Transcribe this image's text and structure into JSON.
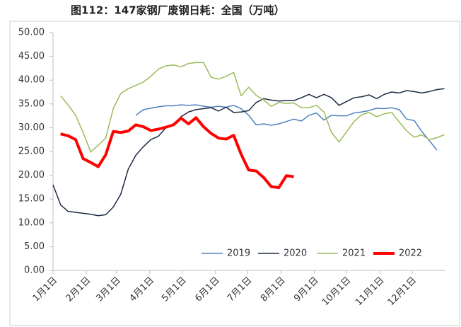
{
  "chart_data": {
    "type": "line",
    "title": "图112：147家钢厂废钢日耗：全国（万吨）",
    "x": [
      0,
      7,
      14,
      21,
      28,
      35,
      42,
      49,
      56,
      63,
      70,
      77,
      84,
      91,
      98,
      105,
      112,
      119,
      126,
      133,
      140,
      147,
      154,
      161,
      168,
      175,
      182,
      189,
      196,
      203,
      210,
      217,
      224,
      231,
      238,
      245,
      252,
      259,
      266,
      273,
      280,
      287,
      294,
      301,
      308,
      315,
      322,
      329,
      336,
      343,
      350,
      357,
      364
    ],
    "xlim": [
      0,
      365
    ],
    "xticks": [
      {
        "value": 0,
        "label": "1月1日"
      },
      {
        "value": 31,
        "label": "2月1日"
      },
      {
        "value": 59,
        "label": "3月1日"
      },
      {
        "value": 90,
        "label": "4月1日"
      },
      {
        "value": 120,
        "label": "5月1日"
      },
      {
        "value": 151,
        "label": "6月1日"
      },
      {
        "value": 181,
        "label": "7月1日"
      },
      {
        "value": 212,
        "label": "8月1日"
      },
      {
        "value": 243,
        "label": "9月1日"
      },
      {
        "value": 273,
        "label": "10月1日"
      },
      {
        "value": 304,
        "label": "11月1日"
      },
      {
        "value": 334,
        "label": "12月1日"
      }
    ],
    "ylim": [
      0,
      50
    ],
    "yticks": [
      {
        "value": 0,
        "label": "0.00"
      },
      {
        "value": 5,
        "label": "5.00"
      },
      {
        "value": 10,
        "label": "10.00"
      },
      {
        "value": 15,
        "label": "15.00"
      },
      {
        "value": 20,
        "label": "20.00"
      },
      {
        "value": 25,
        "label": "25.00"
      },
      {
        "value": 30,
        "label": "30.00"
      },
      {
        "value": 35,
        "label": "35.00"
      },
      {
        "value": 40,
        "label": "40.00"
      },
      {
        "value": 45,
        "label": "45.00"
      },
      {
        "value": 50,
        "label": "50.00"
      }
    ],
    "legend": "bottom",
    "series": [
      {
        "name": "2019",
        "color": "#4f81bd",
        "width": 1.5,
        "values": [
          null,
          null,
          null,
          null,
          null,
          null,
          null,
          null,
          null,
          null,
          null,
          32.6,
          33.8,
          34.1,
          34.4,
          34.6,
          34.6,
          34.8,
          34.7,
          34.8,
          34.5,
          34.3,
          34.5,
          34.3,
          34.7,
          34,
          32.6,
          30.6,
          30.8,
          30.5,
          30.8,
          31.3,
          31.8,
          31.4,
          32.6,
          33.1,
          31.6,
          32.6,
          32.5,
          32.5,
          33.1,
          33.3,
          33.6,
          34.1,
          34,
          34.2,
          33.8,
          31.8,
          31.5,
          29.2,
          27.3,
          25.3,
          null
        ]
      },
      {
        "name": "2020",
        "color": "#1c2b45",
        "width": 1.5,
        "values": [
          18,
          13.8,
          12.4,
          12.2,
          12.0,
          11.8,
          11.5,
          11.7,
          13.3,
          16,
          21.3,
          24.2,
          26,
          27.5,
          28.2,
          30,
          30.5,
          32.3,
          33.3,
          33.8,
          34,
          34.2,
          33.5,
          34.3,
          33.2,
          33.3,
          33.6,
          35.3,
          36.1,
          35.8,
          35.6,
          35.7,
          35.7,
          36.3,
          37,
          36.3,
          37,
          36.3,
          34.7,
          35.5,
          36.3,
          36.5,
          36.9,
          36.1,
          37,
          37.5,
          37.3,
          37.8,
          37.6,
          37.3,
          37.6,
          38,
          38.2
        ]
      },
      {
        "name": "2021",
        "color": "#9bbb59",
        "width": 1.5,
        "values": [
          null,
          36.7,
          34.8,
          32.6,
          29,
          24.9,
          26.3,
          27.8,
          34,
          37.2,
          38.2,
          38.9,
          39.6,
          40.8,
          42.3,
          43,
          43.2,
          42.8,
          43.5,
          43.7,
          43.7,
          40.6,
          40.2,
          40.8,
          41.6,
          36.7,
          38.5,
          36.8,
          35.8,
          34.5,
          35.3,
          35.1,
          35.2,
          34.2,
          34.2,
          34.7,
          33.3,
          29,
          27,
          29.1,
          31.3,
          32.7,
          33.2,
          32.3,
          32.9,
          33.2,
          31.2,
          29.3,
          28,
          28.5,
          27.5,
          27.9,
          28.5
        ]
      },
      {
        "name": "2022",
        "color": "#ff0000",
        "width": 4,
        "values": [
          null,
          28.7,
          28.3,
          27.5,
          23.5,
          22.7,
          21.8,
          24.3,
          29.2,
          29.0,
          29.3,
          30.6,
          30.2,
          29.4,
          29.7,
          30.1,
          30.6,
          32.0,
          30.8,
          32.1,
          30.2,
          28.8,
          27.8,
          27.6,
          28.4,
          24.4,
          21.1,
          20.9,
          19.5,
          17.6,
          17.4,
          19.9,
          19.7,
          null,
          null,
          null,
          null,
          null,
          null,
          null,
          null,
          null,
          null,
          null,
          null,
          null,
          null,
          null,
          null,
          null,
          null,
          null,
          null
        ]
      }
    ]
  }
}
